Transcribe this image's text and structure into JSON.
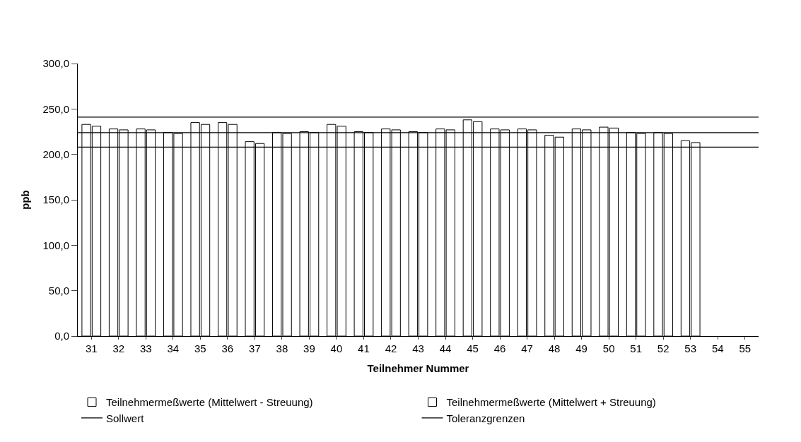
{
  "chart_data": {
    "type": "bar",
    "xlabel": "Teilnehmer Nummer",
    "ylabel": "ppb",
    "categories": [
      "31",
      "32",
      "33",
      "34",
      "35",
      "36",
      "37",
      "38",
      "39",
      "40",
      "41",
      "42",
      "43",
      "44",
      "45",
      "46",
      "47",
      "48",
      "49",
      "50",
      "51",
      "52",
      "53",
      "54",
      "55"
    ],
    "series": [
      {
        "name": "Teilnehmermeßwerte (Mittelwert - Streuung)",
        "color": "#ffffff",
        "values": [
          233,
          228,
          228,
          224,
          235,
          235,
          214,
          224,
          225,
          233,
          225,
          228,
          225,
          228,
          238,
          228,
          228,
          221,
          228,
          230,
          224,
          224,
          215,
          null,
          null
        ]
      },
      {
        "name": "Teilnehmermeßwerte (Mittelwert + Streuung)",
        "color": "#ffffff",
        "values": [
          231,
          227,
          227,
          223,
          233,
          233,
          212,
          223,
          224,
          231,
          224,
          227,
          224,
          227,
          236,
          227,
          227,
          219,
          227,
          229,
          223,
          223,
          213,
          null,
          null
        ]
      }
    ],
    "ylim": [
      0,
      300
    ],
    "yticks": [
      {
        "value": 0,
        "label": "0,0"
      },
      {
        "value": 50,
        "label": "50,0"
      },
      {
        "value": 100,
        "label": "100,0"
      },
      {
        "value": 150,
        "label": "150,0"
      },
      {
        "value": 200,
        "label": "200,0"
      },
      {
        "value": 250,
        "label": "250,0"
      },
      {
        "value": 300,
        "label": "300,0"
      }
    ],
    "ref_lines": [
      {
        "axis": "y",
        "value": 224,
        "label": "Sollwert",
        "color": "#000000"
      },
      {
        "axis": "y",
        "value": 241,
        "label": "Toleranzgrenzen",
        "color": "#000000"
      },
      {
        "axis": "y",
        "value": 208,
        "color": "#000000"
      }
    ],
    "legend": "bottom"
  }
}
